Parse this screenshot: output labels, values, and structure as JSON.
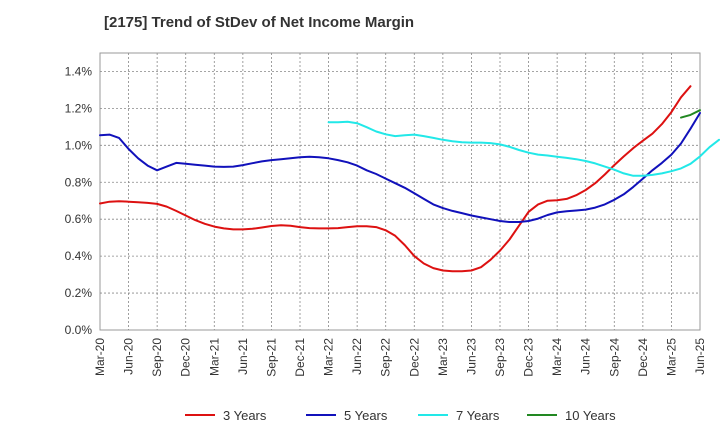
{
  "chart_data": {
    "type": "line",
    "title": "[2175]  Trend of StDev of Net Income Margin",
    "xlabel": "",
    "ylabel": "",
    "ylim": [
      0,
      1.5
    ],
    "y_ticks": [
      "0.0%",
      "0.2%",
      "0.4%",
      "0.6%",
      "0.8%",
      "1.0%",
      "1.2%",
      "1.4%"
    ],
    "y_tick_values": [
      0,
      0.2,
      0.4,
      0.6,
      0.8,
      1.0,
      1.2,
      1.4
    ],
    "x_ticks": [
      "Mar-20",
      "Jun-20",
      "Sep-20",
      "Dec-20",
      "Mar-21",
      "Jun-21",
      "Sep-21",
      "Dec-21",
      "Mar-22",
      "Jun-22",
      "Sep-22",
      "Dec-22",
      "Mar-23",
      "Jun-23",
      "Sep-23",
      "Dec-23",
      "Mar-24",
      "Jun-24",
      "Sep-24",
      "Dec-24",
      "Mar-25",
      "Jun-25"
    ],
    "grid": true,
    "legend_position": "bottom",
    "series": [
      {
        "name": "3 Years",
        "color": "#dd1111",
        "start_index": 0,
        "values": [
          0.685,
          0.695,
          0.697,
          0.695,
          0.692,
          0.688,
          0.683,
          0.668,
          0.645,
          0.62,
          0.595,
          0.575,
          0.56,
          0.55,
          0.545,
          0.545,
          0.548,
          0.555,
          0.563,
          0.567,
          0.565,
          0.557,
          0.552,
          0.55,
          0.55,
          0.552,
          0.557,
          0.562,
          0.562,
          0.557,
          0.54,
          0.51,
          0.46,
          0.4,
          0.36,
          0.335,
          0.322,
          0.318,
          0.318,
          0.322,
          0.34,
          0.38,
          0.43,
          0.49,
          0.565,
          0.64,
          0.68,
          0.7,
          0.703,
          0.71,
          0.73,
          0.758,
          0.795,
          0.842,
          0.893,
          0.94,
          0.985,
          1.025,
          1.063,
          1.115,
          1.18,
          1.26,
          1.32
        ]
      },
      {
        "name": "5 Years",
        "color": "#1111bb",
        "start_index": 0,
        "values": [
          1.055,
          1.058,
          1.04,
          0.98,
          0.93,
          0.89,
          0.865,
          0.885,
          0.905,
          0.9,
          0.895,
          0.89,
          0.885,
          0.883,
          0.885,
          0.893,
          0.903,
          0.913,
          0.92,
          0.925,
          0.93,
          0.935,
          0.938,
          0.935,
          0.93,
          0.92,
          0.908,
          0.89,
          0.865,
          0.845,
          0.82,
          0.795,
          0.77,
          0.74,
          0.71,
          0.68,
          0.66,
          0.645,
          0.633,
          0.62,
          0.61,
          0.6,
          0.59,
          0.585,
          0.585,
          0.59,
          0.603,
          0.623,
          0.637,
          0.643,
          0.647,
          0.652,
          0.663,
          0.68,
          0.705,
          0.735,
          0.775,
          0.82,
          0.865,
          0.905,
          0.95,
          1.01,
          1.09,
          1.175
        ]
      },
      {
        "name": "7 Years",
        "color": "#22e8e8",
        "start_index": 24,
        "values": [
          1.125,
          1.125,
          1.128,
          1.12,
          1.098,
          1.075,
          1.06,
          1.05,
          1.055,
          1.058,
          1.05,
          1.04,
          1.03,
          1.022,
          1.017,
          1.015,
          1.015,
          1.012,
          1.005,
          0.992,
          0.975,
          0.96,
          0.95,
          0.945,
          0.938,
          0.932,
          0.925,
          0.915,
          0.902,
          0.885,
          0.868,
          0.848,
          0.835,
          0.835,
          0.84,
          0.848,
          0.86,
          0.875,
          0.9,
          0.94,
          0.99,
          1.03
        ]
      },
      {
        "name": "10 Years",
        "color": "#228822",
        "start_index": 61,
        "values": [
          1.15,
          1.165,
          1.19
        ]
      }
    ]
  }
}
